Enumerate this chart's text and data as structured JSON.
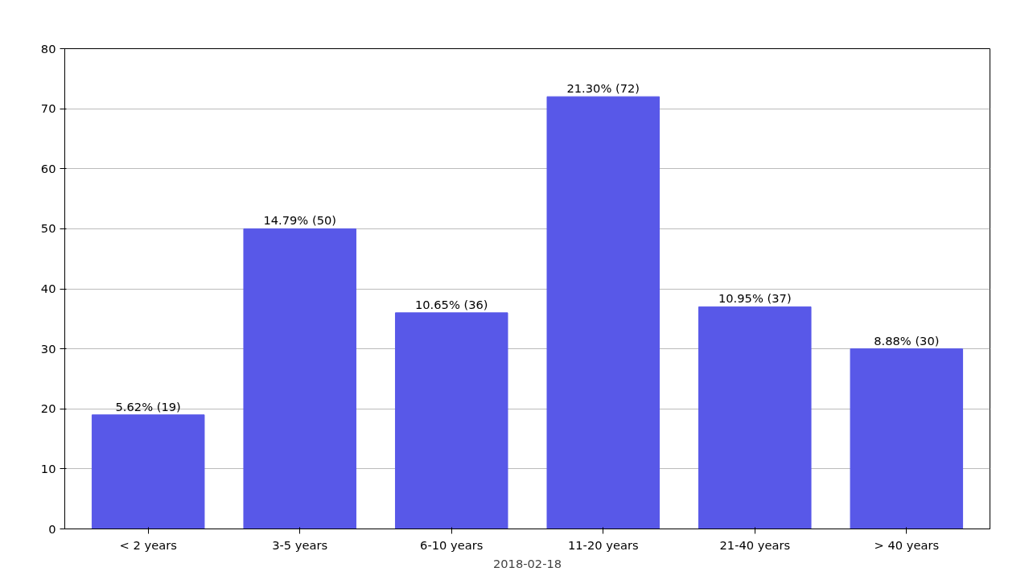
{
  "chart_data": {
    "type": "bar",
    "categories": [
      "< 2 years",
      "3-5 years",
      "6-10 years",
      "11-20 years",
      "21-40 years",
      "> 40 years"
    ],
    "values": [
      19,
      50,
      36,
      72,
      37,
      30
    ],
    "value_labels": [
      "5.62% (19)",
      "14.79% (50)",
      "10.65% (36)",
      "21.30% (72)",
      "10.95% (37)",
      "8.88% (30)"
    ],
    "color": "#5858e8",
    "ylim": [
      0,
      80
    ],
    "yticks": [
      0,
      10,
      20,
      30,
      40,
      50,
      60,
      70,
      80
    ],
    "grid": "y",
    "annotations": [
      "2018-02-18"
    ]
  }
}
